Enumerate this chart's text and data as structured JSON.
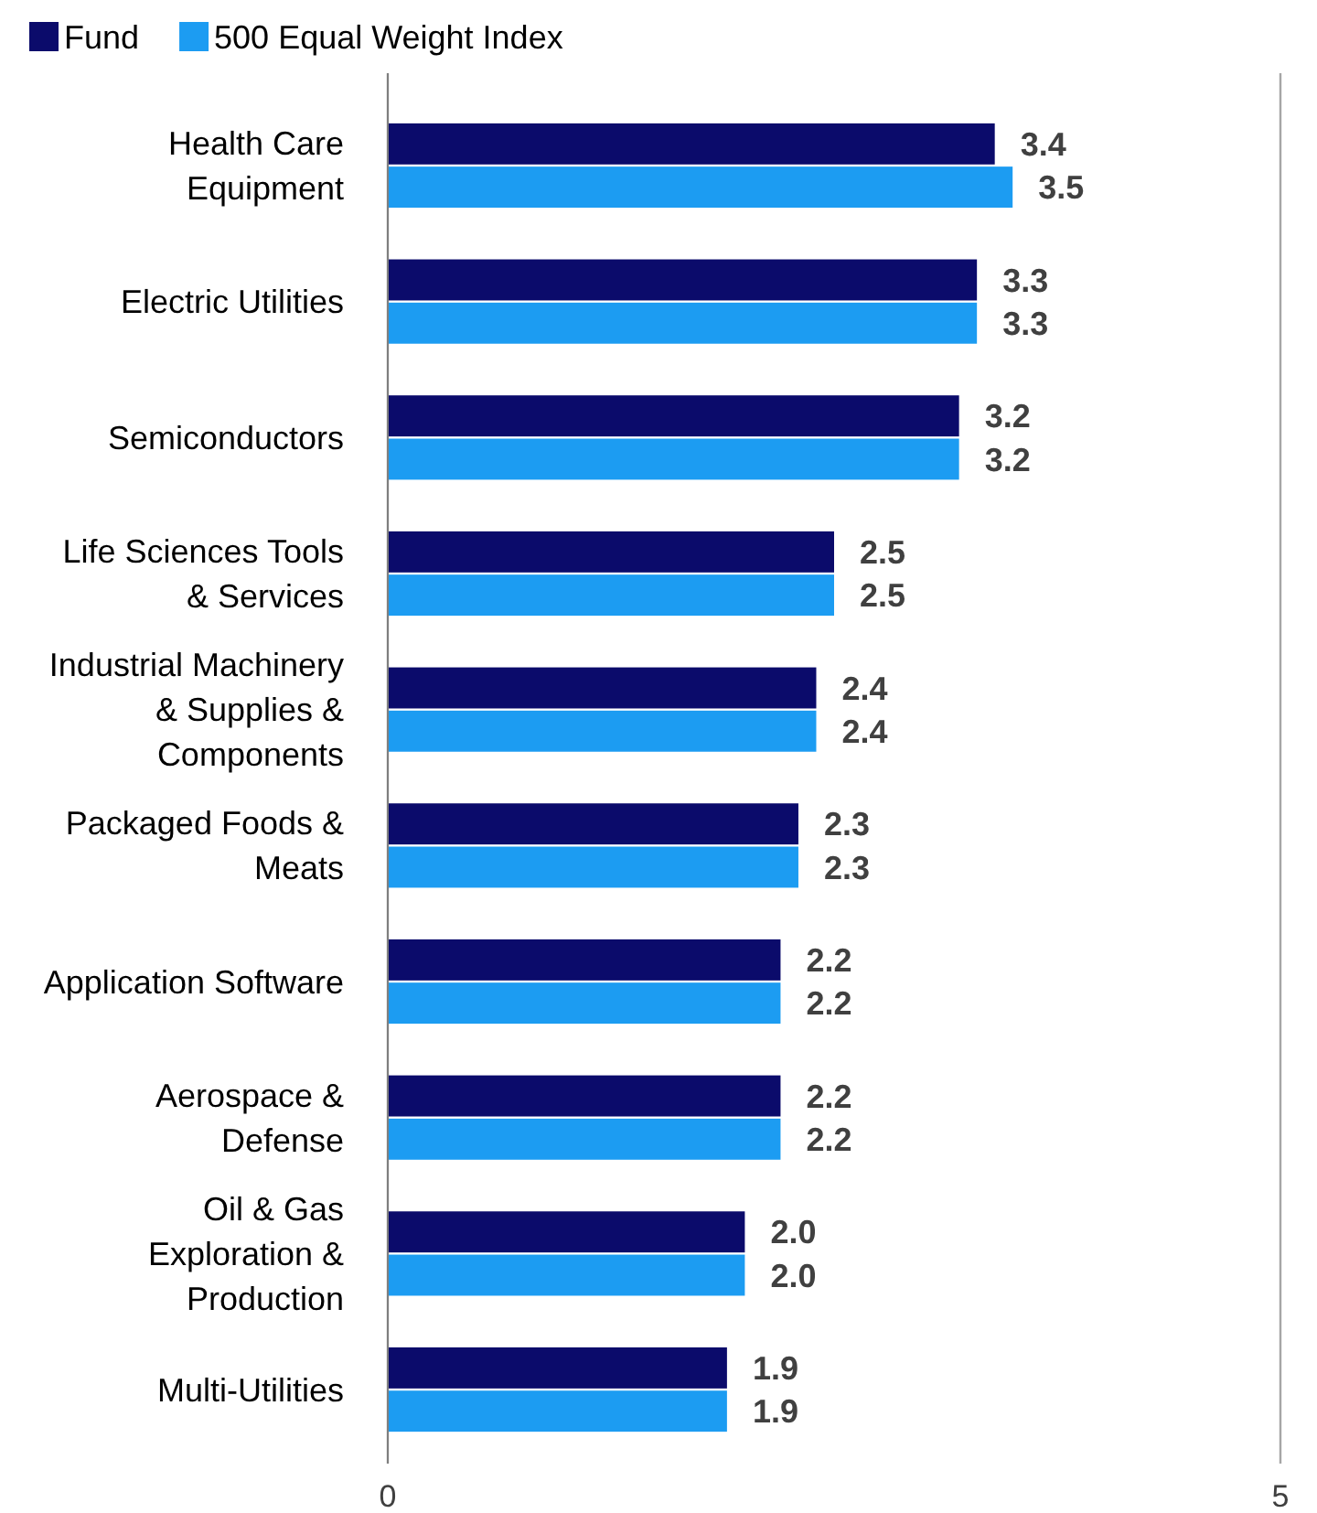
{
  "chart_data": {
    "type": "bar",
    "orientation": "horizontal",
    "categories": [
      "Health Care Equipment",
      "Electric Utilities",
      "Semiconductors",
      "Life Sciences Tools & Services",
      "Industrial Machinery & Supplies & Components",
      "Packaged Foods & Meats",
      "Application Software",
      "Aerospace & Defense",
      "Oil & Gas Exploration & Production",
      "Multi-Utilities"
    ],
    "series": [
      {
        "name": "Fund",
        "color": "#0b0b6b",
        "values": [
          3.4,
          3.3,
          3.2,
          2.5,
          2.4,
          2.3,
          2.2,
          2.2,
          2.0,
          1.9
        ],
        "value_labels": [
          "3.4",
          "3.3",
          "3.2",
          "2.5",
          "2.4",
          "2.3",
          "2.2",
          "2.2",
          "2.0",
          "1.9"
        ]
      },
      {
        "name": "500 Equal Weight Index",
        "color": "#1c9cf2",
        "values": [
          3.5,
          3.3,
          3.2,
          2.5,
          2.4,
          2.3,
          2.2,
          2.2,
          2.0,
          1.9
        ],
        "value_labels": [
          "3.5",
          "3.3",
          "3.2",
          "2.5",
          "2.4",
          "2.3",
          "2.2",
          "2.2",
          "2.0",
          "1.9"
        ]
      }
    ],
    "xlim": [
      0,
      5
    ],
    "xticks": [
      0,
      5
    ],
    "grid": "x",
    "legend": "top left"
  }
}
